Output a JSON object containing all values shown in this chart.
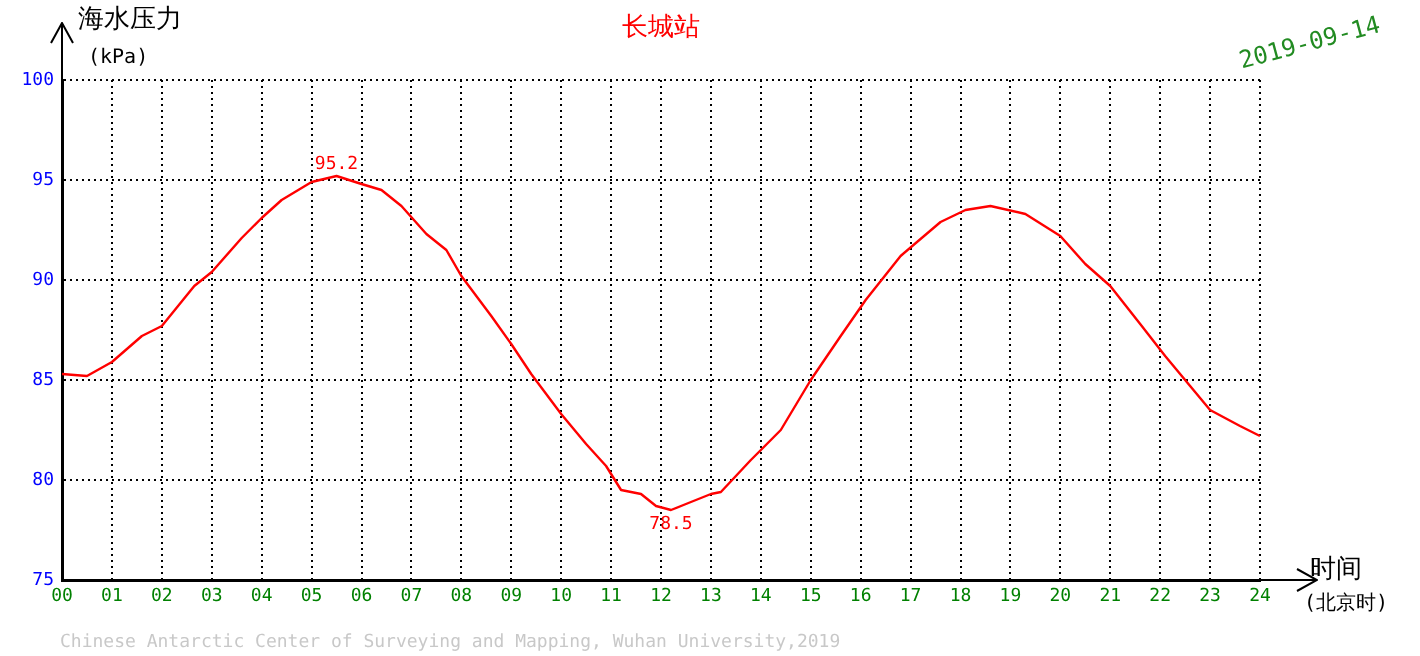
{
  "chart_data": {
    "type": "line",
    "title": "长城站",
    "subtitle": "2019-09-14",
    "ylabel": "海水压力\n(kPa)",
    "xlabel": "时间\n(北京时)",
    "series": [
      {
        "color": "#ff0000",
        "x": [
          0,
          0.5,
          1,
          1.6,
          2,
          2.65,
          3,
          3.6,
          4,
          4.4,
          5,
          5.5,
          6,
          6.4,
          6.8,
          7.3,
          7.7,
          8,
          8.6,
          9,
          9.4,
          10,
          10.5,
          10.9,
          11.2,
          11.6,
          11.9,
          12.2,
          12.5,
          13,
          13.2,
          13.8,
          14.4,
          15,
          15.6,
          16.1,
          16.8,
          17.6,
          18.1,
          18.6,
          19.3,
          20,
          20.5,
          21,
          21.6,
          22.1,
          22.6,
          23,
          23.6,
          24
        ],
        "values": [
          85.3,
          85.2,
          85.9,
          87.2,
          87.7,
          89.7,
          90.4,
          92.1,
          93.1,
          94.0,
          94.9,
          95.2,
          94.8,
          94.5,
          93.7,
          92.3,
          91.5,
          90.2,
          88.2,
          86.8,
          85.3,
          83.3,
          81.8,
          80.7,
          79.5,
          79.3,
          78.7,
          78.5,
          78.8,
          79.3,
          79.4,
          81.0,
          82.5,
          85.0,
          87.2,
          89.0,
          91.2,
          92.9,
          93.5,
          93.7,
          93.3,
          92.2,
          90.8,
          89.7,
          87.8,
          86.2,
          84.7,
          83.5,
          82.7,
          82.2
        ]
      }
    ],
    "xlim": [
      0,
      24
    ],
    "xticks": [
      {
        "value": 0,
        "label": "00"
      },
      {
        "value": 1,
        "label": "01"
      },
      {
        "value": 2,
        "label": "02"
      },
      {
        "value": 3,
        "label": "03"
      },
      {
        "value": 4,
        "label": "04"
      },
      {
        "value": 5,
        "label": "05"
      },
      {
        "value": 6,
        "label": "06"
      },
      {
        "value": 7,
        "label": "07"
      },
      {
        "value": 8,
        "label": "08"
      },
      {
        "value": 9,
        "label": "09"
      },
      10,
      11,
      12,
      13,
      14,
      15,
      16,
      17,
      18,
      19,
      20,
      21,
      22,
      23,
      24
    ],
    "ylim": [
      75,
      100
    ],
    "yticks": [
      75,
      80,
      85,
      90,
      95,
      100
    ],
    "grid": true,
    "marker": "none",
    "line_style": "solid",
    "legend": false,
    "annotations": [
      {
        "text": "95.2",
        "x": 5.5,
        "y": 95.2
      },
      {
        "text": "78.5",
        "x": 12.2,
        "y": 78.5
      },
      "Chinese Antarctic Center of Surveying and Mapping, Wuhan University,2019"
    ]
  }
}
